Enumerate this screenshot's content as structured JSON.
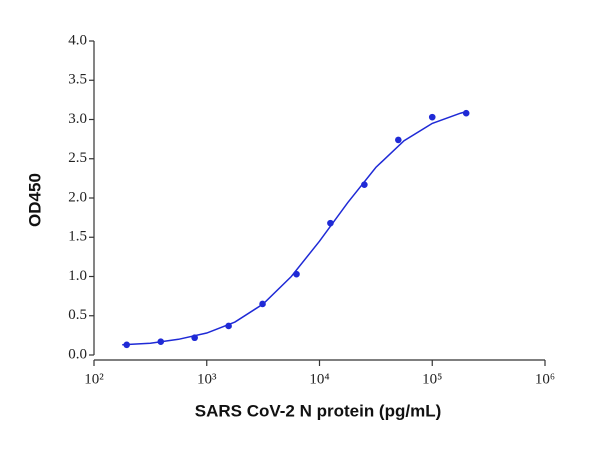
{
  "chart_data": {
    "type": "scatter",
    "x_label": "SARS CoV-2 N protein (pg/mL)",
    "y_label": "OD450",
    "x": [
      195,
      391,
      781,
      1563,
      3125,
      6250,
      12500,
      25000,
      50000,
      100000,
      200000
    ],
    "values": [
      0.13,
      0.17,
      0.22,
      0.37,
      0.65,
      1.03,
      1.68,
      2.17,
      2.74,
      3.03,
      3.08
    ],
    "color": "#1f2ad6",
    "curve": {
      "x": [
        178,
        316,
        562,
        1000,
        1778,
        3162,
        5623,
        10000,
        17783,
        31623,
        56234,
        100000,
        177828,
        200000
      ],
      "values": [
        0.13,
        0.15,
        0.2,
        0.28,
        0.42,
        0.65,
        1.0,
        1.45,
        1.94,
        2.39,
        2.73,
        2.95,
        3.08,
        3.1
      ]
    },
    "xscale": "log",
    "xlim": [
      100,
      1000000
    ],
    "xticks": [
      {
        "value": 100,
        "label": "10²"
      },
      {
        "value": 1000,
        "label": "10³"
      },
      {
        "value": 10000,
        "label": "10⁴"
      },
      {
        "value": 100000,
        "label": "10⁵"
      },
      {
        "value": 1000000,
        "label": "10⁶"
      }
    ],
    "ylim": [
      0,
      4
    ],
    "yticks": [
      {
        "value": 0,
        "label": "0.0"
      },
      {
        "value": 0.5,
        "label": "0.5"
      },
      {
        "value": 1,
        "label": "1.0"
      },
      {
        "value": 1.5,
        "label": "1.5"
      },
      {
        "value": 2,
        "label": "2.0"
      },
      {
        "value": 2.5,
        "label": "2.5"
      },
      {
        "value": 3,
        "label": "3.0"
      },
      {
        "value": 3.5,
        "label": "3.5"
      },
      {
        "value": 4,
        "label": "4.0"
      }
    ]
  }
}
